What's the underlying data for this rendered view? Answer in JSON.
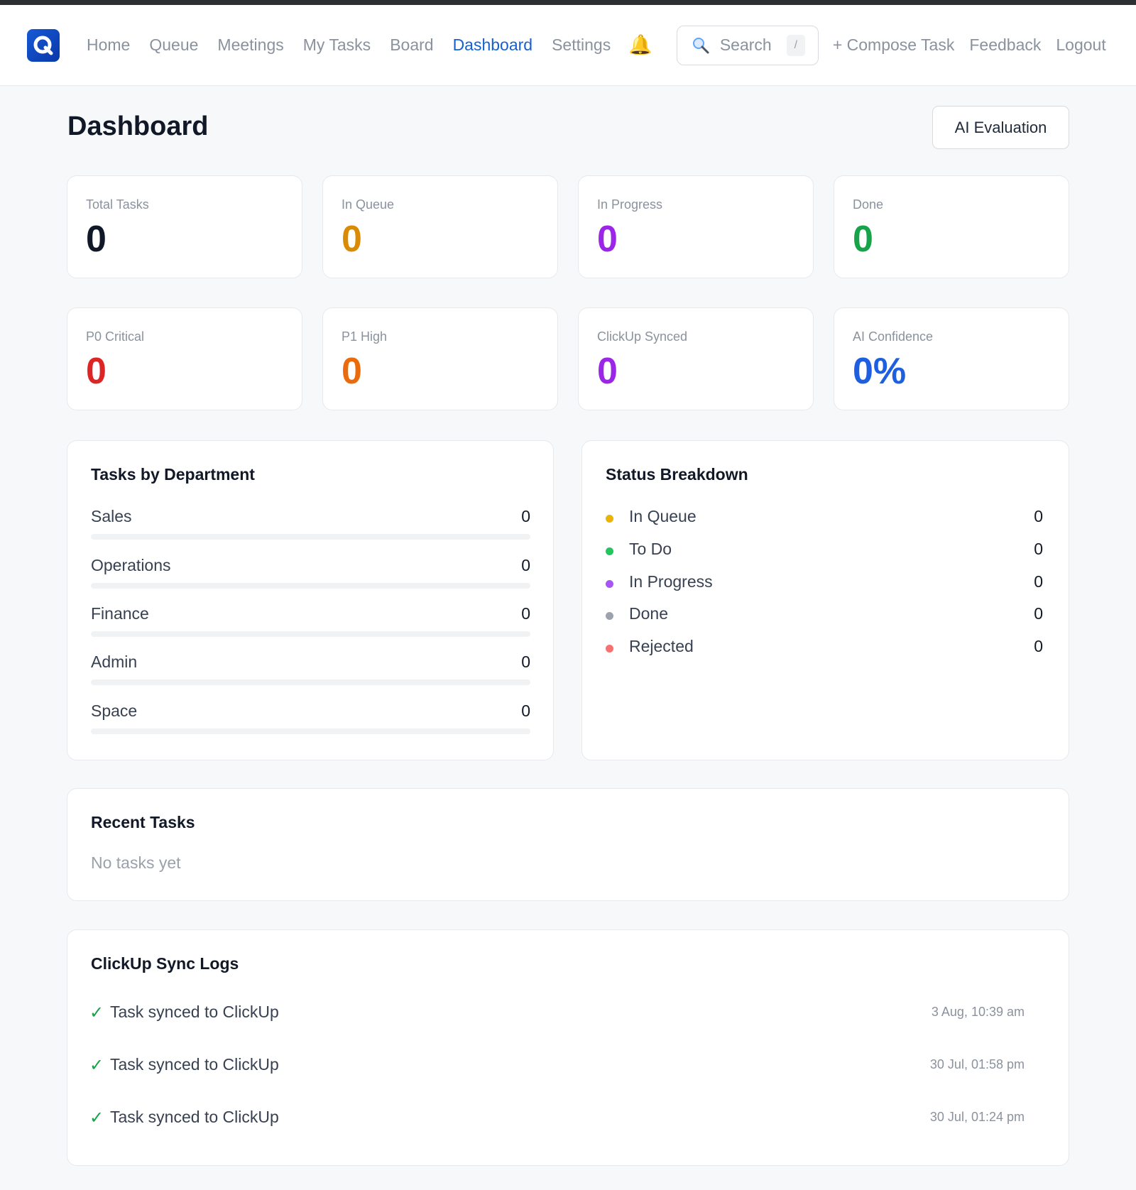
{
  "nav": {
    "logo_letter": "Q",
    "items": [
      {
        "label": "Home"
      },
      {
        "label": "Queue"
      },
      {
        "label": "Meetings"
      },
      {
        "label": "My Tasks"
      },
      {
        "label": "Board"
      },
      {
        "label": "Dashboard"
      },
      {
        "label": "Settings"
      }
    ],
    "active": "Dashboard",
    "bell_glyph": "🔔",
    "search": {
      "placeholder": "Search",
      "shortcut": "/"
    },
    "compose_label": "+ Compose Task",
    "feedback_label": "Feedback",
    "logout_label": "Logout"
  },
  "page": {
    "title": "Dashboard",
    "ai_eval_label": "AI Evaluation"
  },
  "stats": [
    {
      "label": "Total Tasks",
      "value": "0",
      "color": "#111827"
    },
    {
      "label": "In Queue",
      "value": "0",
      "color": "#d98b06"
    },
    {
      "label": "In Progress",
      "value": "0",
      "color": "#9b26e8"
    },
    {
      "label": "Done",
      "value": "0",
      "color": "#16a34a"
    },
    {
      "label": "P0 Critical",
      "value": "0",
      "color": "#dc2626"
    },
    {
      "label": "P1 High",
      "value": "0",
      "color": "#ea6a0c"
    },
    {
      "label": "ClickUp Synced",
      "value": "0",
      "color": "#9b26e8"
    },
    {
      "label": "AI Confidence",
      "value": "0%",
      "color": "#1d5fe0"
    }
  ],
  "departments": {
    "title": "Tasks by Department",
    "items": [
      {
        "name": "Sales",
        "count": "0",
        "fraction": 0
      },
      {
        "name": "Operations",
        "count": "0",
        "fraction": 0
      },
      {
        "name": "Finance",
        "count": "0",
        "fraction": 0
      },
      {
        "name": "Admin",
        "count": "0",
        "fraction": 0
      },
      {
        "name": "Space",
        "count": "0",
        "fraction": 0
      }
    ]
  },
  "status_breakdown": {
    "title": "Status Breakdown",
    "items": [
      {
        "name": "In Queue",
        "count": "0",
        "color": "#eab308"
      },
      {
        "name": "To Do",
        "count": "0",
        "color": "#22c55e"
      },
      {
        "name": "In Progress",
        "count": "0",
        "color": "#a855f7"
      },
      {
        "name": "Done",
        "count": "0",
        "color": "#9ca3af"
      },
      {
        "name": "Rejected",
        "count": "0",
        "color": "#f87171"
      }
    ]
  },
  "recent_tasks": {
    "title": "Recent Tasks",
    "empty": "No tasks yet"
  },
  "sync_logs": {
    "title": "ClickUp Sync Logs",
    "check_glyph": "✓",
    "items": [
      {
        "text": "Task synced to ClickUp",
        "time": "3 Aug, 10:39 am"
      },
      {
        "text": "Task synced to ClickUp",
        "time": "30 Jul, 01:58 pm"
      },
      {
        "text": "Task synced to ClickUp",
        "time": "30 Jul, 01:24 pm"
      }
    ]
  }
}
